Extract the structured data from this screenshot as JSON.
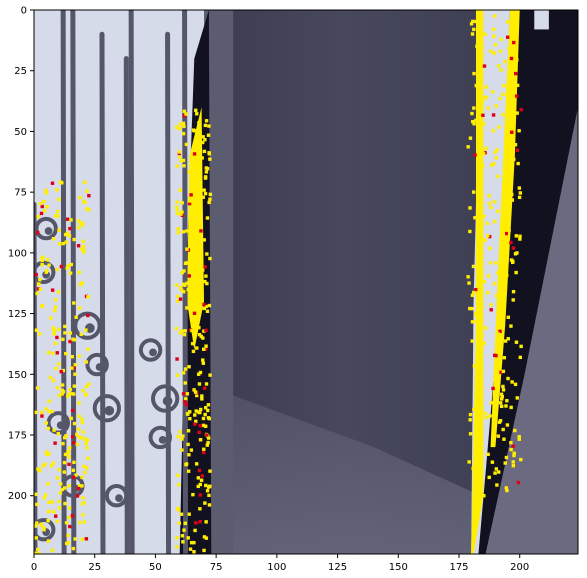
{
  "chart_data": {
    "type": "heatmap",
    "title": "",
    "xlabel": "",
    "ylabel": "",
    "xlim": [
      0,
      224
    ],
    "ylim": [
      224,
      0
    ],
    "grid": false,
    "legend": "none",
    "x_ticks": [
      {
        "value": 0,
        "label": "0"
      },
      {
        "value": 25,
        "label": "25"
      },
      {
        "value": 50,
        "label": "50"
      },
      {
        "value": 75,
        "label": "75"
      },
      {
        "value": 100,
        "label": "100"
      },
      {
        "value": 125,
        "label": "125"
      },
      {
        "value": 150,
        "label": "150"
      },
      {
        "value": 175,
        "label": "175"
      },
      {
        "value": 200,
        "label": "200"
      }
    ],
    "y_ticks": [
      {
        "value": 0,
        "label": "0"
      },
      {
        "value": 25,
        "label": "25"
      },
      {
        "value": 50,
        "label": "50"
      },
      {
        "value": 75,
        "label": "75"
      },
      {
        "value": 100,
        "label": "100"
      },
      {
        "value": 125,
        "label": "125"
      },
      {
        "value": 150,
        "label": "150"
      },
      {
        "value": 175,
        "label": "175"
      },
      {
        "value": 200,
        "label": "200"
      }
    ],
    "colors": {
      "pale_region": "#d6dbea",
      "highlight_yellow": "#ffee00",
      "highlight_red": "#e0001a",
      "dark_panel": "#46475a",
      "darker_panel": "#3a3b4d",
      "shadow": "#11111f",
      "gray_panel": "#6b6a80",
      "ironwork": "#55566a"
    }
  }
}
